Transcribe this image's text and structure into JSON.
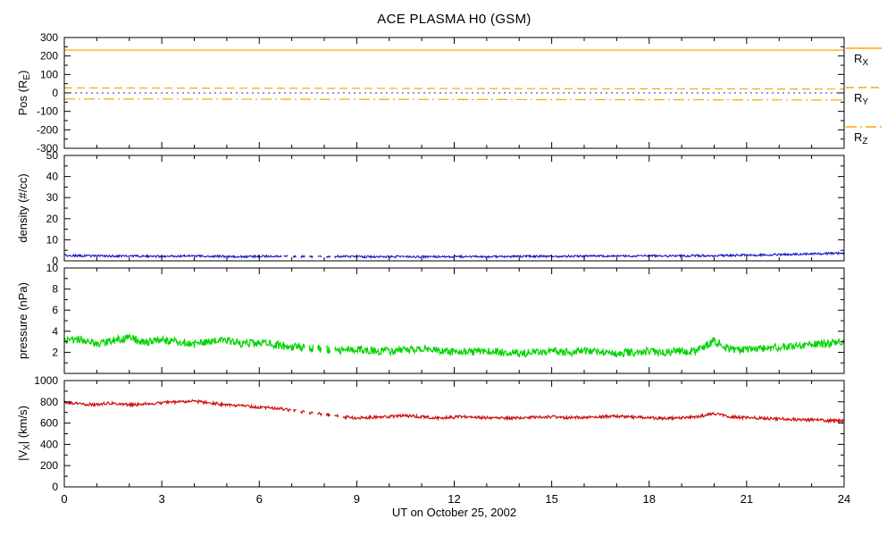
{
  "chart_data": {
    "type": "line",
    "title": "ACE PLASMA H0 (GSM)",
    "xlabel": "UT on October 25, 2002",
    "x_range": [
      0,
      24
    ],
    "x_major_step": 3,
    "x_minor_step": 1,
    "x_tick_labels": [
      "0",
      "3",
      "6",
      "9",
      "12",
      "15",
      "18",
      "21",
      "24"
    ],
    "panels": [
      {
        "name": "position",
        "ylabel": {
          "pre": "Pos (R",
          "sub": "E",
          "post": ")"
        },
        "y_range": [
          -300,
          300
        ],
        "y_major": 100,
        "y_minor": 50,
        "y_tick_labels": [
          300,
          200,
          100,
          0,
          -100,
          -200,
          -300
        ],
        "series": [
          {
            "name": "Rx",
            "color": "#FFA500",
            "dash": "",
            "width": 1.2,
            "noise": 0,
            "y": [
              232,
              232
            ]
          },
          {
            "name": "Ry",
            "color": "#FFA500",
            "dash": "9,5",
            "width": 1.2,
            "noise": 0,
            "y": [
              27,
              21
            ]
          },
          {
            "name": "Rz",
            "color": "#FFA500",
            "dash": "12,4,2,4",
            "width": 1.2,
            "noise": 0,
            "y": [
              -33,
              -38
            ]
          },
          {
            "name": "zero-reference",
            "color": "#2929C8",
            "dash": "2,4",
            "width": 1.1,
            "noise": 0,
            "y": [
              0,
              0
            ]
          }
        ]
      },
      {
        "name": "density",
        "ylabel": {
          "pre": "density (#/cc)",
          "sub": "",
          "post": ""
        },
        "y_range": [
          0,
          50
        ],
        "y_major": 10,
        "y_minor": 5,
        "y_tick_labels": [
          50,
          40,
          30,
          20,
          10,
          0
        ],
        "series": [
          {
            "name": "proton-density",
            "color": "#1414CC",
            "dash": "",
            "width": 1.1,
            "noise": 0.5,
            "sparse": [
              6.7,
              8.3
            ],
            "y": [
              2.6,
              2.4,
              2.3,
              2.2,
              2.3,
              2.2,
              2.1,
              2.2,
              2.3,
              2.2,
              2.1,
              2.0,
              2.1,
              2.2,
              2.1,
              2.0,
              2.0,
              2.1,
              2.0,
              1.9,
              2.0,
              2.0,
              1.9,
              2.0,
              2.0,
              2.1,
              2.0,
              2.0,
              2.1,
              2.2,
              2.1,
              2.2,
              2.2,
              2.3,
              2.2,
              2.3,
              2.4,
              2.3,
              2.4,
              2.5,
              2.4,
              2.6,
              2.7,
              2.8,
              3.0,
              3.1,
              3.3,
              3.5,
              3.8
            ]
          }
        ]
      },
      {
        "name": "pressure",
        "ylabel": {
          "pre": "pressure (nPa)",
          "sub": "",
          "post": ""
        },
        "y_range": [
          0,
          10
        ],
        "y_major": 2,
        "y_minor": 1,
        "y_tick_labels": [
          10,
          8,
          6,
          4,
          2
        ],
        "series": [
          {
            "name": "flow-pressure",
            "color": "#00D400",
            "dash": "",
            "width": 1.2,
            "noise": 0.38,
            "sparse": [
              7.3,
              8.4
            ],
            "y": [
              3.0,
              3.3,
              2.8,
              3.1,
              3.4,
              2.9,
              3.2,
              3.0,
              2.8,
              3.0,
              3.1,
              2.8,
              2.9,
              2.7,
              2.5,
              2.4,
              2.3,
              2.2,
              2.3,
              2.2,
              2.1,
              2.2,
              2.3,
              2.2,
              2.1,
              2.0,
              2.1,
              2.0,
              1.9,
              2.0,
              2.1,
              2.0,
              2.1,
              2.0,
              1.9,
              2.0,
              2.1,
              2.0,
              2.1,
              2.2,
              3.1,
              2.3,
              2.2,
              2.4,
              2.5,
              2.6,
              2.7,
              2.8,
              3.0
            ]
          }
        ]
      },
      {
        "name": "velocity",
        "ylabel": {
          "pre": "|V",
          "sub": "X",
          "post": "| (km/s)"
        },
        "y_range": [
          0,
          1000
        ],
        "y_major": 200,
        "y_minor": 100,
        "y_tick_labels": [
          1000,
          800,
          600,
          400,
          200,
          0
        ],
        "series": [
          {
            "name": "vx-speed",
            "color": "#CC1111",
            "dash": "",
            "width": 1.2,
            "noise": 14,
            "sparse": [
              7.0,
              8.6
            ],
            "y": [
              790,
              780,
              775,
              790,
              770,
              780,
              790,
              800,
              805,
              790,
              770,
              760,
              750,
              740,
              720,
              700,
              680,
              660,
              650,
              655,
              660,
              670,
              660,
              650,
              655,
              660,
              650,
              645,
              650,
              655,
              660,
              650,
              655,
              660,
              665,
              655,
              650,
              645,
              650,
              660,
              690,
              660,
              650,
              645,
              640,
              635,
              630,
              625,
              620
            ]
          }
        ]
      }
    ],
    "legend": [
      {
        "pre": "R",
        "sub": "X",
        "post": "",
        "color": "#FFA500",
        "dash": ""
      },
      {
        "pre": "R",
        "sub": "Y",
        "post": "",
        "color": "#FFA500",
        "dash": "9,5"
      },
      {
        "pre": "R",
        "sub": "Z",
        "post": "",
        "color": "#FFA500",
        "dash": "12,4,2,4"
      }
    ]
  }
}
